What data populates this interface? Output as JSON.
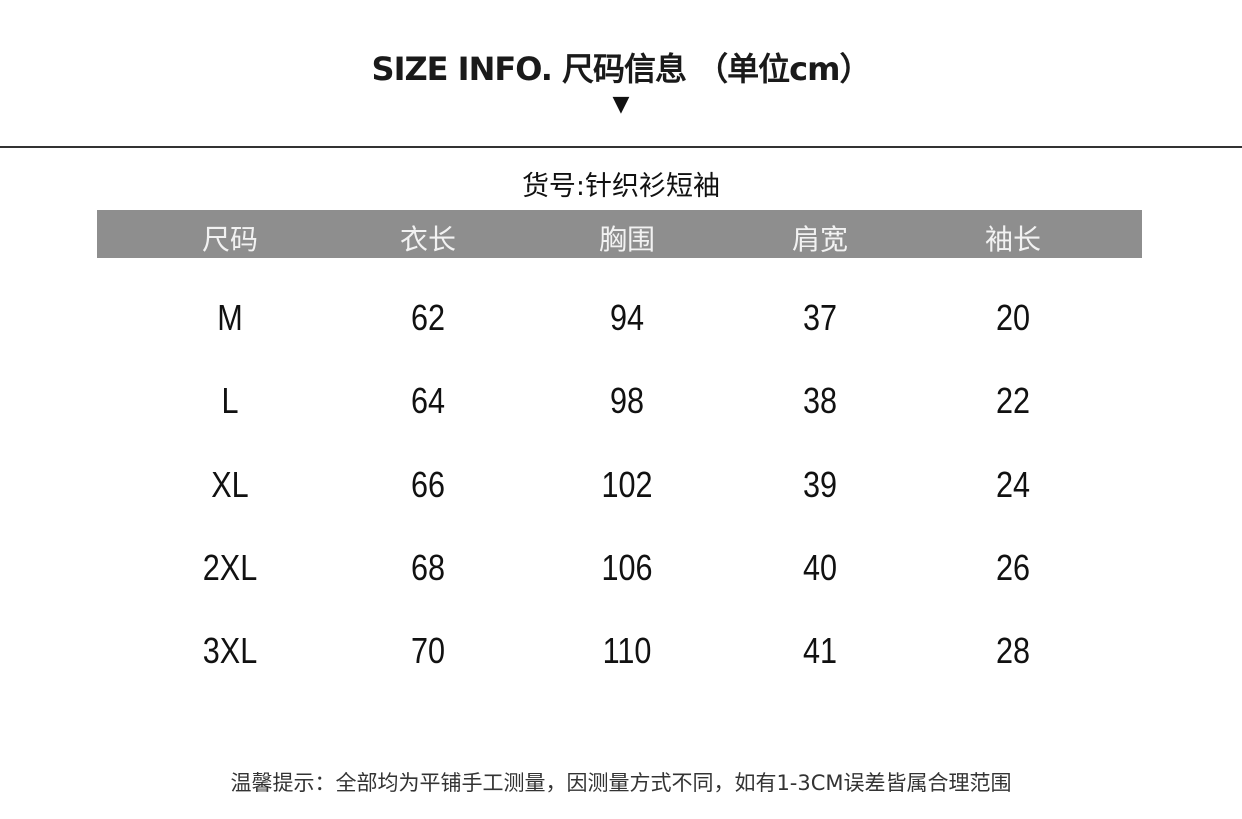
{
  "title": "SIZE INFO. 尺码信息 （单位cm）",
  "arrow": "▼",
  "product_code": "货号:针织衫短袖",
  "table": {
    "headers": [
      "尺码",
      "衣长",
      "胸围",
      "肩宽",
      "袖长"
    ],
    "rows": [
      [
        "M",
        "62",
        "94",
        "37",
        "20"
      ],
      [
        "L",
        "64",
        "98",
        "38",
        "22"
      ],
      [
        "XL",
        "66",
        "102",
        "39",
        "24"
      ],
      [
        "2XL",
        "68",
        "106",
        "40",
        "26"
      ],
      [
        "3XL",
        "70",
        "110",
        "41",
        "28"
      ]
    ]
  },
  "note": "温馨提示：全部均为平铺手工测量，因测量方式不同，如有1-3CM误差皆属合理范围",
  "colors": {
    "header_bg": "#8e8e8e",
    "header_text": "#f2f2f2"
  }
}
